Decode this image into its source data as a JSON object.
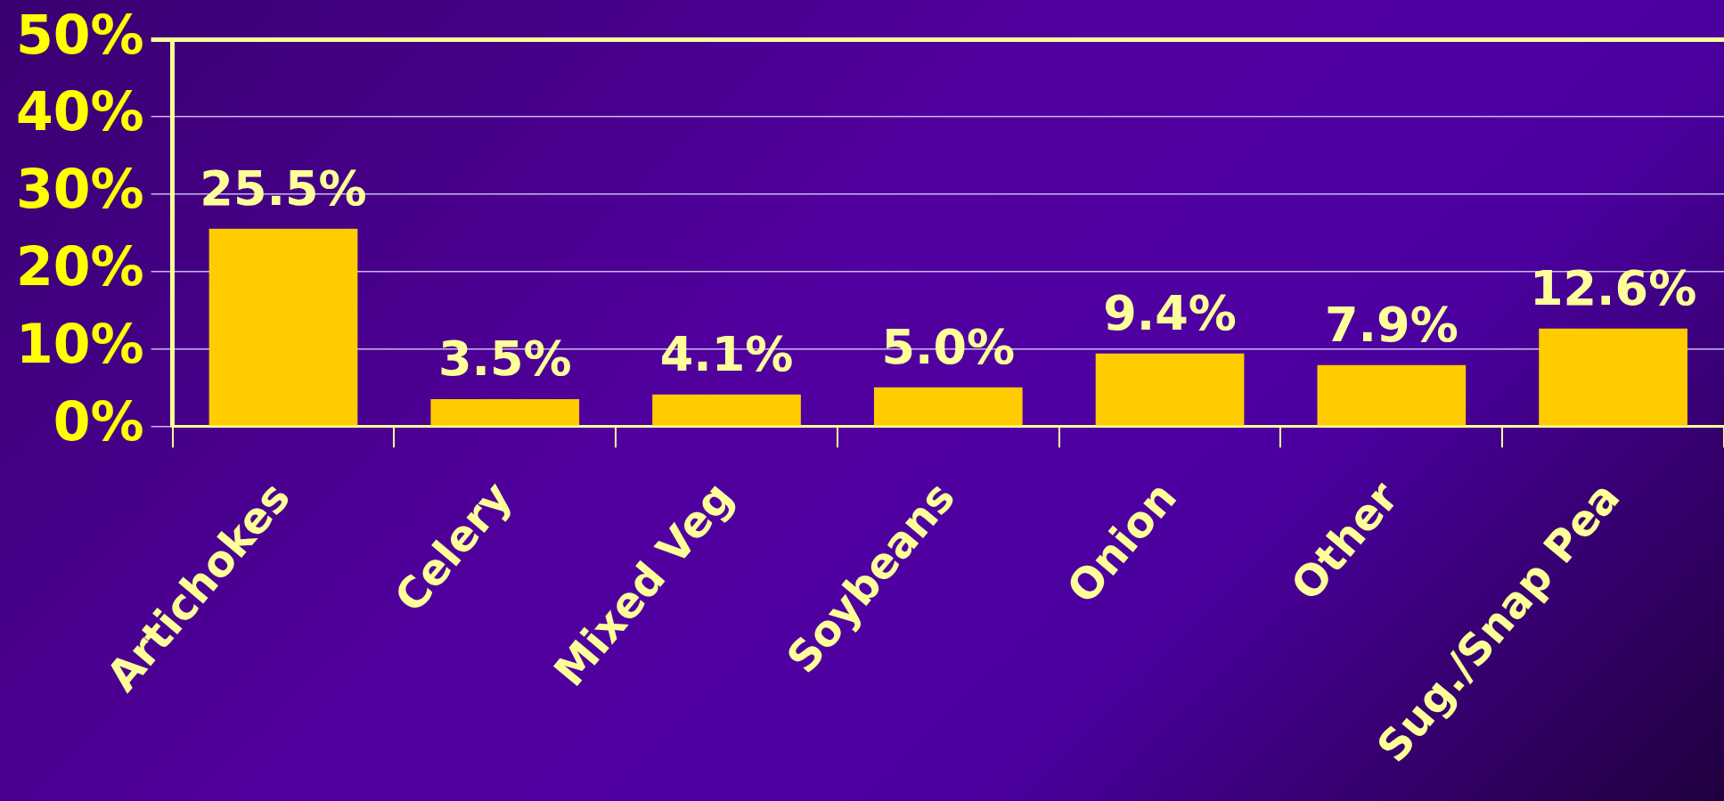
{
  "chart_data": {
    "type": "bar",
    "categories": [
      "Artichokes",
      "Celery",
      "Mixed Veg",
      "Soybeans",
      "Onion",
      "Other",
      "Sug./Snap Pea"
    ],
    "values": [
      25.5,
      3.5,
      4.1,
      5.0,
      9.4,
      7.9,
      12.6
    ],
    "value_labels": [
      "25.5%",
      "3.5%",
      "4.1%",
      "5.0%",
      "9.4%",
      "7.9%",
      "12.6%"
    ],
    "color": "#ffcc00",
    "ylim": [
      0,
      50
    ],
    "yticks": [
      {
        "value": 0,
        "label": "0%"
      },
      {
        "value": 10,
        "label": "10%"
      },
      {
        "value": 20,
        "label": "20%"
      },
      {
        "value": 30,
        "label": "30%"
      },
      {
        "value": 40,
        "label": "40%"
      },
      {
        "value": 50,
        "label": "50%"
      }
    ],
    "grid": "y",
    "legend": false
  }
}
